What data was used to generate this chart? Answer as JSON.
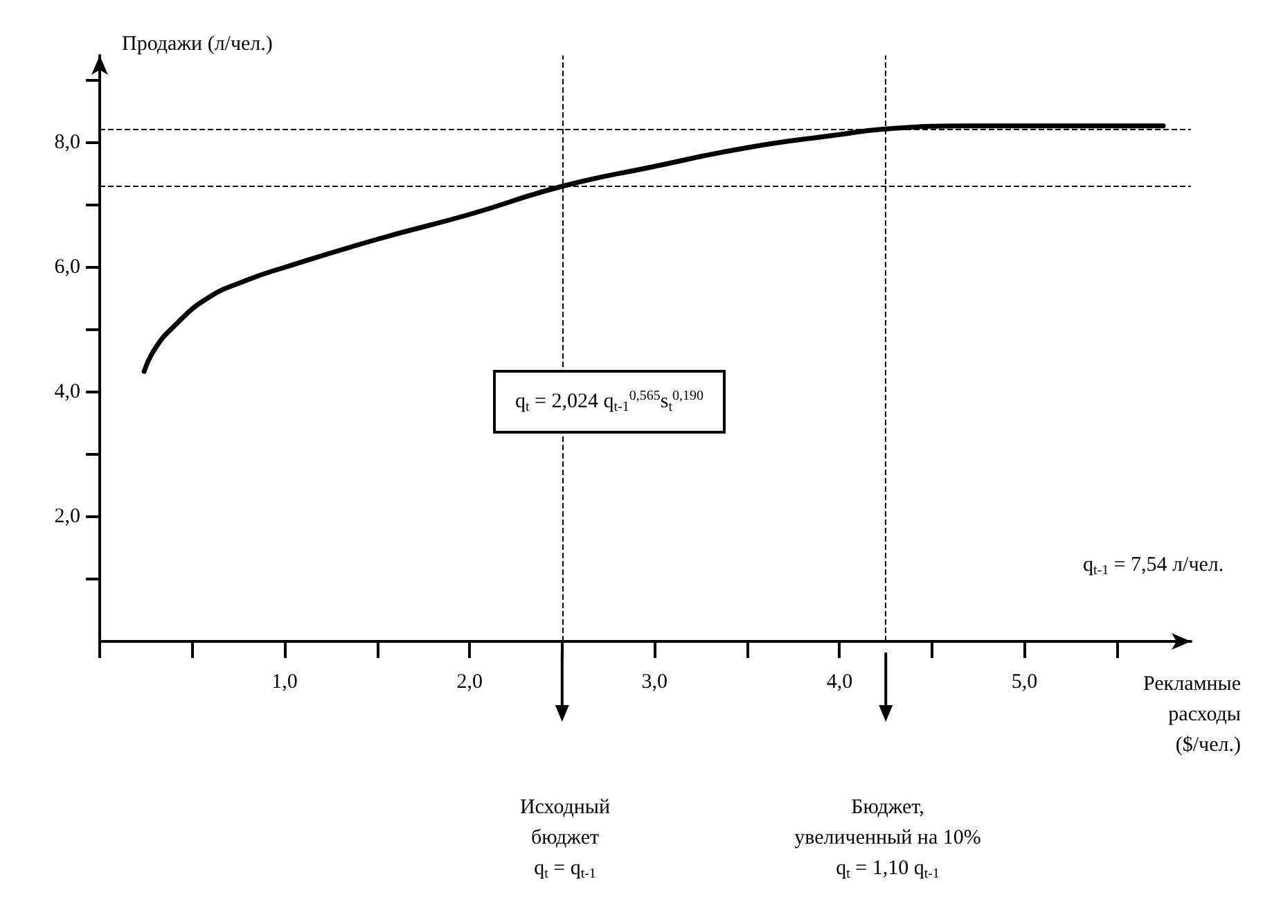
{
  "chart_data": {
    "type": "line",
    "ylabel": "Продажи (л/чел.)",
    "xlabel": "Рекламные\nрасходы\n($/чел.)",
    "series": [
      {
        "color": "#000000",
        "x": [
          0.24,
          0.3,
          0.4,
          0.58,
          0.8,
          1.0,
          1.5,
          2.0,
          2.5,
          3.0,
          3.5,
          4.0,
          4.25,
          4.7,
          5.2,
          5.75
        ],
        "values": [
          4.33,
          4.7,
          5.05,
          5.5,
          5.8,
          6.0,
          6.45,
          6.85,
          7.3,
          7.62,
          7.92,
          8.13,
          8.22,
          8.27,
          8.27,
          8.27
        ]
      }
    ],
    "xlim": [
      0,
      5.9
    ],
    "ylim": [
      0,
      9.4
    ],
    "xticks": [
      {
        "value": 0,
        "label": null
      },
      {
        "value": 0.5,
        "label": null
      },
      {
        "value": 1,
        "label": "1,0"
      },
      {
        "value": 1.5,
        "label": null
      },
      {
        "value": 2,
        "label": "2,0"
      },
      {
        "value": 2.5,
        "label": null
      },
      {
        "value": 3,
        "label": "3,0"
      },
      {
        "value": 3.5,
        "label": null
      },
      {
        "value": 4,
        "label": "4,0"
      },
      {
        "value": 4.5,
        "label": null
      },
      {
        "value": 5,
        "label": "5,0"
      },
      {
        "value": 5.5,
        "label": null
      }
    ],
    "yticks": [
      {
        "value": 1,
        "label": null
      },
      {
        "value": 2,
        "label": "2,0"
      },
      {
        "value": 3,
        "label": null
      },
      {
        "value": 4,
        "label": "4,0"
      },
      {
        "value": 5,
        "label": null
      },
      {
        "value": 6,
        "label": "6,0"
      },
      {
        "value": 7,
        "label": null
      },
      {
        "value": 8,
        "label": "8,0"
      },
      {
        "value": 9,
        "label": null
      }
    ],
    "ref_lines": [
      {
        "axis": "x",
        "value": 2.5,
        "color": "#000000",
        "line_style": "dashed"
      },
      {
        "axis": "x",
        "value": 4.25,
        "color": "#000000",
        "line_style": "dashed"
      },
      {
        "axis": "y",
        "value": 7.3,
        "color": "#000000",
        "line_style": "dashed"
      },
      {
        "axis": "y",
        "value": 8.22,
        "color": "#000000",
        "line_style": "dashed"
      }
    ],
    "annotations": [
      "q$_{t}$ = 2,024 q$_{t-1}$$^{0,565}$s$_{t}$$^{0,190}$",
      "q$_{t-1}$ = 7,54 л/чел.",
      "Исходный\nбюджет\nq$_{t}$ = q$_{t-1}$",
      "Бюджет,\nувеличенный на 10%\nq$_{t}$ = 1,10 q$_{t-1}$"
    ],
    "marker": "none",
    "line_style": "solid",
    "grid": false
  }
}
